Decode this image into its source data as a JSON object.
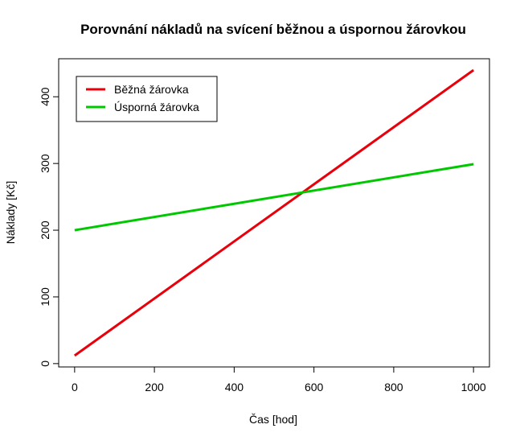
{
  "chart_data": {
    "type": "line",
    "title": "Porovnání nákladů na svícení běžnou a úspornou žárovkou",
    "x_label": "Čas [hod]",
    "y_label": "Náklady [Kč]",
    "x": [
      0,
      1000
    ],
    "series": [
      {
        "name": "Běžná žárovka",
        "color": "#e8000b",
        "values": [
          12,
          440
        ]
      },
      {
        "name": "Úsporná žárovka",
        "color": "#00c800",
        "values": [
          200,
          299
        ]
      }
    ],
    "xlim": [
      -40,
      1040
    ],
    "ylim": [
      -5,
      457
    ],
    "xticks": [
      0,
      200,
      400,
      600,
      800,
      1000
    ],
    "yticks": [
      0,
      100,
      200,
      300,
      400
    ],
    "legend": "top-left"
  }
}
